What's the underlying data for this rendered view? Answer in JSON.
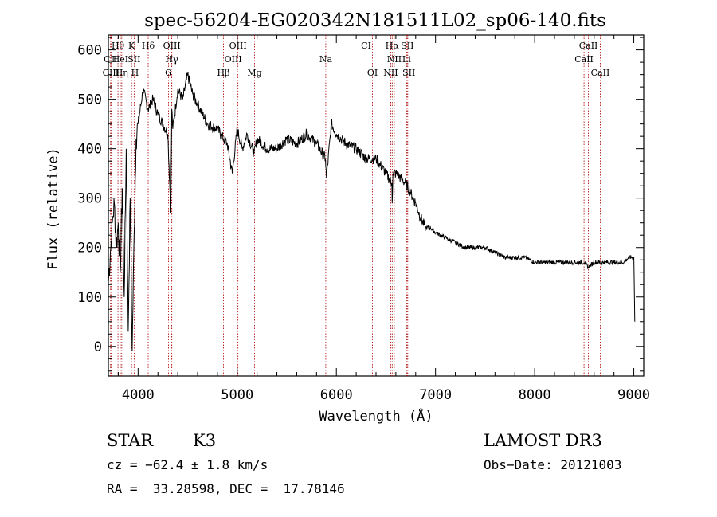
{
  "chart_data": {
    "type": "line",
    "title": "spec-56204-EG020342N181511L02_sp06-140.fits",
    "xlabel": "Wavelength (Å)",
    "ylabel": "Flux (relative)",
    "xlim": [
      3700,
      9100
    ],
    "ylim": [
      -60,
      630
    ],
    "xticks": [
      4000,
      5000,
      6000,
      7000,
      8000,
      9000
    ],
    "yticks": [
      0,
      100,
      200,
      300,
      400,
      500,
      600
    ],
    "series": [
      {
        "name": "spectrum",
        "x": [
          3700,
          3720,
          3740,
          3760,
          3780,
          3800,
          3820,
          3840,
          3860,
          3880,
          3900,
          3920,
          3940,
          3960,
          3980,
          4000,
          4050,
          4100,
          4150,
          4200,
          4250,
          4300,
          4330,
          4340,
          4350,
          4400,
          4450,
          4500,
          4550,
          4600,
          4700,
          4800,
          4860,
          4900,
          4950,
          5000,
          5050,
          5100,
          5170,
          5200,
          5300,
          5400,
          5500,
          5600,
          5700,
          5800,
          5890,
          5900,
          5950,
          6000,
          6100,
          6200,
          6300,
          6400,
          6500,
          6560,
          6563,
          6570,
          6600,
          6650,
          6700,
          6750,
          6800,
          6850,
          6900,
          6950,
          7000,
          7100,
          7200,
          7300,
          7400,
          7500,
          7600,
          7700,
          7800,
          7900,
          8000,
          8100,
          8200,
          8300,
          8400,
          8500,
          8540,
          8600,
          8700,
          8800,
          8900,
          8950,
          9000,
          9010
        ],
        "y": [
          130,
          190,
          250,
          290,
          200,
          250,
          150,
          320,
          100,
          400,
          30,
          300,
          -10,
          230,
          420,
          450,
          520,
          480,
          500,
          470,
          450,
          430,
          270,
          480,
          440,
          520,
          500,
          550,
          510,
          490,
          450,
          440,
          420,
          410,
          350,
          440,
          400,
          430,
          390,
          420,
          400,
          400,
          420,
          410,
          430,
          410,
          380,
          340,
          450,
          430,
          410,
          400,
          380,
          380,
          350,
          330,
          290,
          350,
          350,
          340,
          330,
          310,
          290,
          260,
          240,
          240,
          230,
          220,
          210,
          200,
          200,
          200,
          190,
          180,
          180,
          180,
          170,
          170,
          170,
          170,
          170,
          170,
          160,
          170,
          170,
          170,
          170,
          180,
          180,
          50
        ]
      }
    ],
    "lines": [
      {
        "label": "CII",
        "wave": 3722,
        "row": 1
      },
      {
        "label": "Hθ",
        "wave": 3797,
        "row": 0
      },
      {
        "label": "CIII",
        "wave": 3727,
        "row": 2
      },
      {
        "label": "HeI",
        "wave": 3820,
        "row": 1
      },
      {
        "label": "Hη",
        "wave": 3835,
        "row": 2
      },
      {
        "label": "K",
        "wave": 3934,
        "row": 0
      },
      {
        "label": "SII",
        "wave": 3960,
        "row": 1
      },
      {
        "label": "H",
        "wave": 3969,
        "row": 2
      },
      {
        "label": "Hδ",
        "wave": 4102,
        "row": 0
      },
      {
        "label": "OIII",
        "wave": 4340,
        "row": 0
      },
      {
        "label": "Hγ",
        "wave": 4340,
        "row": 1
      },
      {
        "label": "G",
        "wave": 4307,
        "row": 2
      },
      {
        "label": "Hβ",
        "wave": 4861,
        "row": 2
      },
      {
        "label": "OIII",
        "wave": 4959,
        "row": 1
      },
      {
        "label": "OIII",
        "wave": 5007,
        "row": 0
      },
      {
        "label": "Mg",
        "wave": 5175,
        "row": 2
      },
      {
        "label": "Na",
        "wave": 5893,
        "row": 1
      },
      {
        "label": "CI",
        "wave": 6300,
        "row": 0
      },
      {
        "label": "OI",
        "wave": 6364,
        "row": 2
      },
      {
        "label": "Hα",
        "wave": 6563,
        "row": 0
      },
      {
        "label": "NII",
        "wave": 6584,
        "row": 1
      },
      {
        "label": "NII",
        "wave": 6548,
        "row": 2
      },
      {
        "label": "SII",
        "wave": 6716,
        "row": 0
      },
      {
        "label": "Li",
        "wave": 6708,
        "row": 1
      },
      {
        "label": "SII",
        "wave": 6731,
        "row": 2
      },
      {
        "label": "CaII",
        "wave": 8542,
        "row": 0
      },
      {
        "label": "CaII",
        "wave": 8498,
        "row": 1
      },
      {
        "label": "CaII",
        "wave": 8662,
        "row": 2
      }
    ]
  },
  "footer": {
    "class_label": "STAR",
    "subclass_label": "K3",
    "survey": "LAMOST DR3",
    "cz": "cz = −62.4 ± 1.8 km/s",
    "obs_date": "Obs−Date: 20121003",
    "radec": "RA =  33.28598, DEC =  17.78146"
  },
  "colors": {
    "spectrum": "#000000",
    "line_marker": "#aa0000",
    "axes": "#000000"
  }
}
